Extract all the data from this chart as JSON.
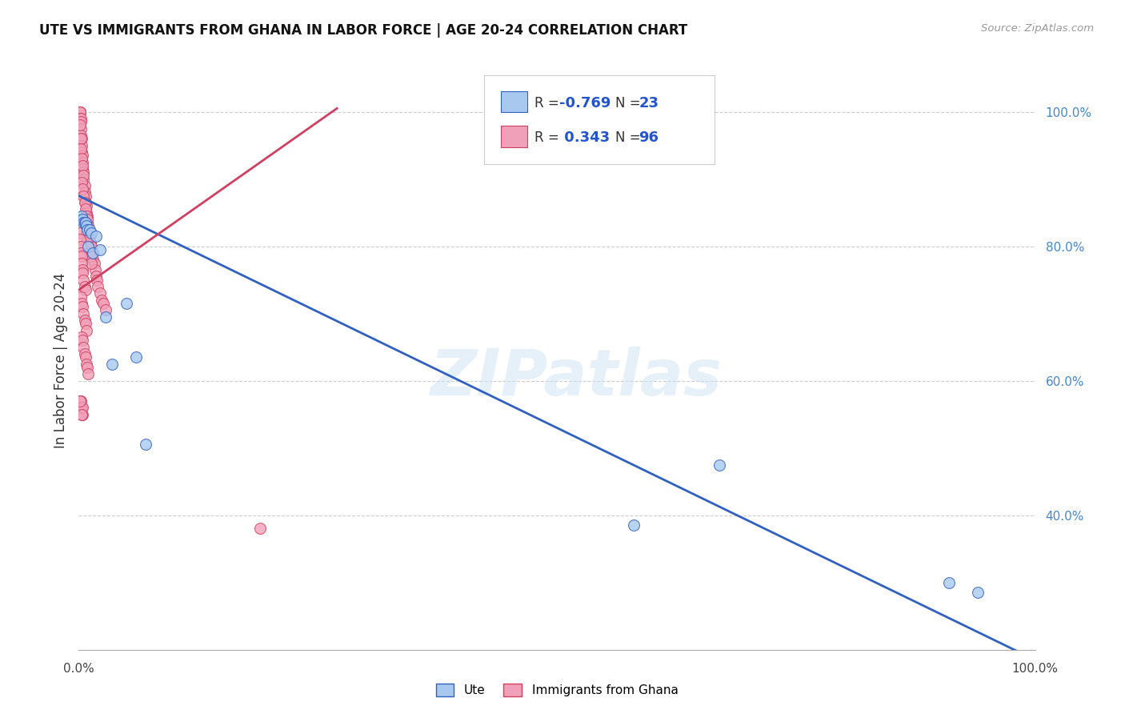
{
  "title": "UTE VS IMMIGRANTS FROM GHANA IN LABOR FORCE | AGE 20-24 CORRELATION CHART",
  "source": "Source: ZipAtlas.com",
  "ylabel": "In Labor Force | Age 20-24",
  "watermark": "ZIPatlas",
  "legend_blue_R": "-0.769",
  "legend_blue_N": "23",
  "legend_pink_R": "0.343",
  "legend_pink_N": "96",
  "legend_blue_label": "Ute",
  "legend_pink_label": "Immigrants from Ghana",
  "blue_color": "#A8C8F0",
  "pink_color": "#F0A0B8",
  "trend_blue_color": "#3060C0",
  "trend_pink_color": "#D04060",
  "blue_scatter_x": [
    0.002,
    0.003,
    0.004,
    0.005,
    0.006,
    0.007,
    0.008,
    0.009,
    0.01,
    0.011,
    0.013,
    0.015,
    0.018,
    0.022,
    0.028,
    0.035,
    0.05,
    0.06,
    0.07,
    0.58,
    0.67,
    0.91,
    0.94
  ],
  "blue_scatter_y": [
    0.84,
    0.845,
    0.84,
    0.835,
    0.835,
    0.835,
    0.83,
    0.825,
    0.8,
    0.825,
    0.82,
    0.79,
    0.815,
    0.795,
    0.695,
    0.625,
    0.715,
    0.635,
    0.505,
    0.385,
    0.475,
    0.3,
    0.285
  ],
  "blue_trend_x": [
    0.0,
    1.0
  ],
  "blue_trend_y": [
    0.875,
    0.185
  ],
  "pink_scatter_x": [
    0.001,
    0.001,
    0.001,
    0.001,
    0.002,
    0.002,
    0.002,
    0.002,
    0.003,
    0.003,
    0.003,
    0.004,
    0.004,
    0.004,
    0.005,
    0.005,
    0.006,
    0.006,
    0.007,
    0.007,
    0.008,
    0.008,
    0.009,
    0.009,
    0.01,
    0.01,
    0.011,
    0.012,
    0.013,
    0.014,
    0.015,
    0.016,
    0.017,
    0.018,
    0.019,
    0.02,
    0.022,
    0.024,
    0.026,
    0.028,
    0.001,
    0.002,
    0.002,
    0.003,
    0.004,
    0.005,
    0.003,
    0.004,
    0.005,
    0.006,
    0.007,
    0.008,
    0.009,
    0.007,
    0.008,
    0.009,
    0.01,
    0.011,
    0.012,
    0.013,
    0.001,
    0.001,
    0.002,
    0.002,
    0.003,
    0.003,
    0.004,
    0.004,
    0.005,
    0.006,
    0.007,
    0.002,
    0.003,
    0.004,
    0.005,
    0.006,
    0.007,
    0.008,
    0.003,
    0.004,
    0.005,
    0.006,
    0.007,
    0.008,
    0.009,
    0.01,
    0.002,
    0.003,
    0.004,
    0.001,
    0.002,
    0.003,
    0.004,
    0.001,
    0.19,
    0.003
  ],
  "pink_scatter_y": [
    1.0,
    1.0,
    1.0,
    0.99,
    0.99,
    0.985,
    0.975,
    0.965,
    0.96,
    0.95,
    0.94,
    0.935,
    0.925,
    0.915,
    0.91,
    0.9,
    0.89,
    0.88,
    0.875,
    0.865,
    0.86,
    0.85,
    0.845,
    0.835,
    0.83,
    0.82,
    0.815,
    0.805,
    0.8,
    0.79,
    0.78,
    0.775,
    0.765,
    0.755,
    0.75,
    0.74,
    0.73,
    0.72,
    0.715,
    0.705,
    0.98,
    0.96,
    0.945,
    0.93,
    0.92,
    0.905,
    0.895,
    0.885,
    0.875,
    0.865,
    0.855,
    0.845,
    0.84,
    0.83,
    0.82,
    0.81,
    0.8,
    0.79,
    0.785,
    0.775,
    0.82,
    0.81,
    0.8,
    0.79,
    0.785,
    0.775,
    0.765,
    0.76,
    0.75,
    0.74,
    0.735,
    0.725,
    0.715,
    0.71,
    0.7,
    0.69,
    0.685,
    0.675,
    0.665,
    0.66,
    0.65,
    0.64,
    0.635,
    0.625,
    0.62,
    0.61,
    0.57,
    0.56,
    0.55,
    0.57,
    0.56,
    0.55,
    0.56,
    0.57,
    0.38,
    0.55
  ],
  "pink_trend_x": [
    0.0,
    0.27
  ],
  "pink_trend_y": [
    0.735,
    1.005
  ],
  "xlim": [
    0.0,
    1.0
  ],
  "ylim": [
    0.2,
    1.06
  ],
  "grid_yticks": [
    0.4,
    0.6,
    0.8,
    1.0
  ],
  "right_ytick_labels": [
    "40.0%",
    "60.0%",
    "80.0%",
    "100.0%"
  ]
}
